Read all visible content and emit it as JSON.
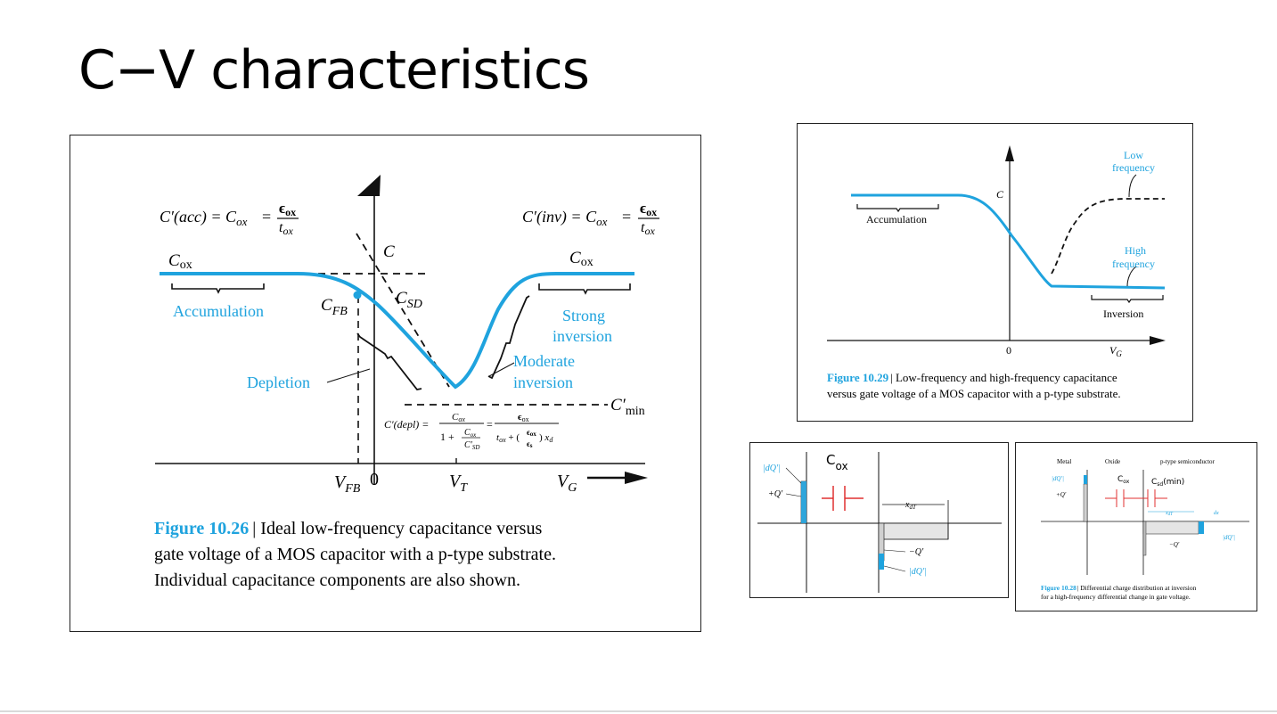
{
  "slide": {
    "title": "C−V characteristics"
  },
  "fig26": {
    "caption_label": "Figure 10.26",
    "caption_line1": "| Ideal low-frequency capacitance versus",
    "caption_line2": "gate voltage of a MOS capacitor with a p-type substrate.",
    "caption_line3": "Individual capacitance components are also shown.",
    "eq_acc": "C′(acc) = C",
    "eq_inv": "C′(inv) = C",
    "eq_sub": "ox",
    "eq_eq": "=",
    "eps_ox": "ϵ",
    "t_ox": "t",
    "cox_left": "C",
    "cox_right": "C",
    "cox_sub": "ox",
    "c_axis": "C",
    "c_fb": "C",
    "c_fb_sub": "FB",
    "c_sd": "C",
    "c_sd_sub": "SD",
    "c_min": "C′",
    "c_min_sub": "min",
    "accumulation": "Accumulation",
    "depletion": "Depletion",
    "strong1": "Strong",
    "strong2": "inversion",
    "moderate1": "Moderate",
    "moderate2": "inversion",
    "eq_depl": "C′(depl) =",
    "vfb": "V",
    "vfb_sub": "FB",
    "zero": "0",
    "vt": "V",
    "vt_sub": "T",
    "vg": "V",
    "vg_sub": "G"
  },
  "fig29": {
    "caption_label": "Figure 10.29",
    "caption_line1": "| Low-frequency and high-frequency capacitance",
    "caption_line2": "versus gate voltage of a MOS capacitor with a p-type substrate.",
    "c_axis": "C",
    "accumulation": "Accumulation",
    "inversion": "Inversion",
    "low1": "Low",
    "low2": "frequency",
    "high1": "High",
    "high2": "frequency",
    "zero": "0",
    "vg": "V",
    "vg_sub": "G"
  },
  "charge_fig": {
    "cox_label": "C",
    "cox_sub": "ox",
    "dq_top": "|dQ′|",
    "plus_q": "+Q′",
    "xdt": "x",
    "xdt_sub": "dT",
    "minus_q": "−Q′",
    "dq_bottom": "|dQ′|"
  },
  "fig28": {
    "metal": "Metal",
    "oxide": "Oxide",
    "semi": "p-type semiconductor",
    "dq_top": "|dQ′|",
    "plus_q": "+Q′",
    "cox": "C",
    "cox_sub": "ox",
    "csd": "C",
    "csd_sub": "sd",
    "csd_suffix": "(min)",
    "xdt": "x",
    "xdt_sub": "dT",
    "dx": "dx",
    "minus_q": "−Q′",
    "dq_right": "|dQ′|",
    "caption_label": "Figure 10.28",
    "caption_line1": "| Differential charge distribution at inversion",
    "caption_line2": "for a high-frequency differential change in gate voltage."
  },
  "colors": {
    "accent": "#1fa3de",
    "capacitor": "#e03030",
    "ink": "#111111"
  }
}
